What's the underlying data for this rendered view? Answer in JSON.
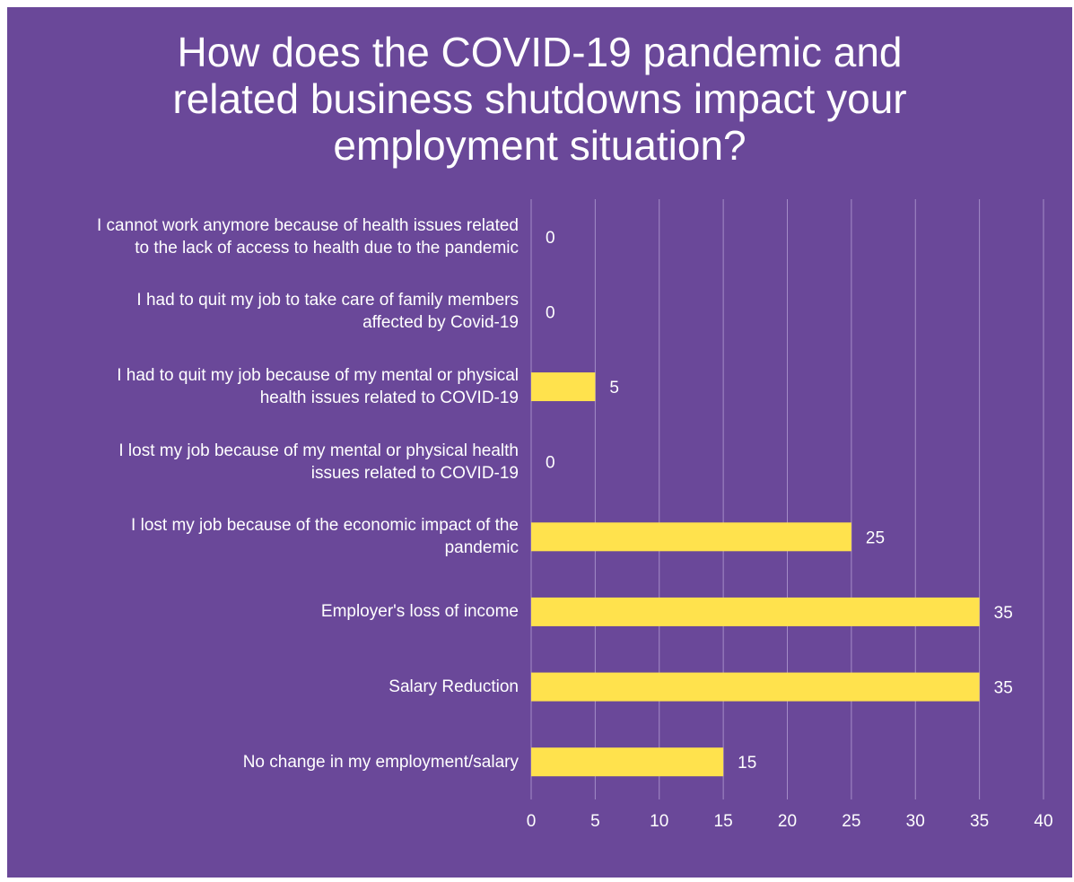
{
  "chart_data": {
    "type": "bar",
    "orientation": "horizontal",
    "title_lines": [
      "How does the COVID-19 pandemic and",
      "related business shutdowns impact your",
      "employment situation?"
    ],
    "categories": [
      [
        "I cannot work anymore because of health issues related",
        "to the lack of access to health due to the pandemic"
      ],
      [
        "I had to quit my job to take care of family members",
        "affected by Covid-19"
      ],
      [
        "I had to quit my job because of my mental or physical",
        "health issues related to COVID-19"
      ],
      [
        "I lost my job because of my mental or physical health",
        "issues related to COVID-19"
      ],
      [
        "I lost my job because of the economic impact of the",
        "pandemic"
      ],
      [
        "Employer's loss of income"
      ],
      [
        "Salary Reduction"
      ],
      [
        "No change in my employment/salary"
      ]
    ],
    "values": [
      0,
      0,
      5,
      0,
      25,
      35,
      35,
      15
    ],
    "xlim": [
      0,
      40
    ],
    "xticks": [
      "0",
      "5",
      "10",
      "15",
      "20",
      "25",
      "30",
      "35",
      "40"
    ],
    "grid": true,
    "data_labels": true,
    "colors": {
      "background": "#6a4899",
      "bar": "#ffe24d",
      "gridline": "#a48cc8",
      "text": "#ffffff"
    }
  }
}
